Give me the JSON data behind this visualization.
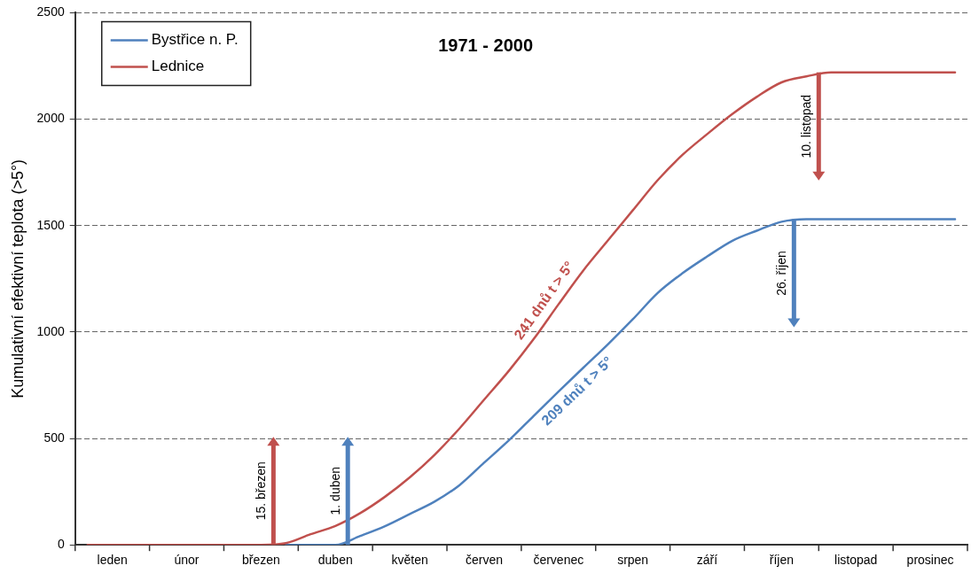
{
  "chart_data": {
    "type": "line",
    "title": "1971 - 2000",
    "ylabel": "Kumulativní efektivní teplota (>5°)",
    "categories": [
      null,
      "leden",
      null,
      null,
      "únor",
      null,
      null,
      "březen",
      null,
      null,
      "duben",
      null,
      null,
      "květen",
      null,
      null,
      "červen",
      null,
      null,
      "červenec",
      null,
      null,
      "srpen",
      null,
      null,
      "září",
      null,
      null,
      "říjen",
      null,
      null,
      "listopad",
      null,
      null,
      "prosinec",
      null
    ],
    "ylim": [
      0,
      2500
    ],
    "yticks": [
      0,
      500,
      1000,
      1500,
      2000,
      2500
    ],
    "grid": "y",
    "legend": "top left",
    "series": [
      {
        "name": "Bystřice n. P.",
        "color": "#4f81bd",
        "values": [
          null,
          null,
          null,
          null,
          null,
          null,
          null,
          null,
          0,
          0,
          0,
          42,
          88,
          145,
          203,
          280,
          386,
          491,
          606,
          720,
          832,
          943,
          1060,
          1183,
          1276,
          1355,
          1428,
          1476,
          1518,
          1530,
          1530,
          1530,
          1530,
          1530,
          1530,
          1530
        ]
      },
      {
        "name": "Lednice",
        "color": "#c0504d",
        "values": [
          0,
          0,
          0,
          0,
          0,
          0,
          0,
          0,
          8,
          50,
          89,
          149,
          226,
          317,
          423,
          546,
          682,
          818,
          967,
          1130,
          1289,
          1431,
          1572,
          1713,
          1832,
          1930,
          2023,
          2105,
          2173,
          2201,
          2220,
          2220,
          2220,
          2220,
          2220,
          2220
        ]
      }
    ],
    "annotations": [
      "15. březen",
      "1. duben",
      "10. listopad",
      "26. říjen",
      "241 dnů t > 5°",
      "209 dnů t > 5°"
    ]
  }
}
